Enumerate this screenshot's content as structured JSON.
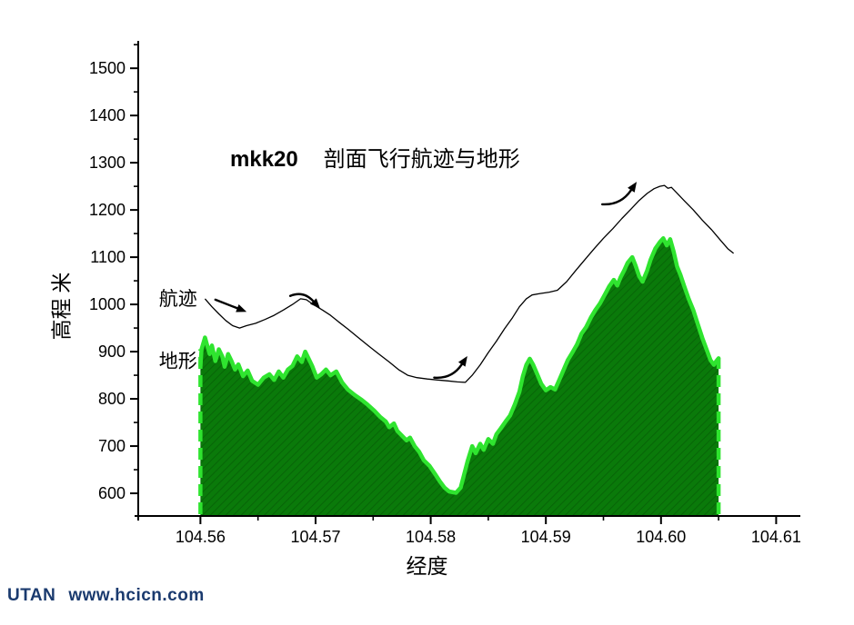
{
  "title": {
    "prefix": "mkk20",
    "text": "剖面飞行航迹与地形"
  },
  "footer": {
    "brand": "UTAN",
    "url": "www.hcicn.com"
  },
  "colors": {
    "terrain_fill": "#0a7a0a",
    "terrain_hatch": "#076607",
    "terrain_edge": "#2fe42f",
    "track_line": "#000000",
    "footer_text": "#1a3a6e"
  },
  "chart_data": {
    "type": "area",
    "title": "mkk20 剖面飞行航迹与地形",
    "xlabel": "经度",
    "ylabel": "高程 米",
    "xlim": [
      104.5546,
      104.6121
    ],
    "ylim": [
      552,
      1558
    ],
    "grid": false,
    "legend_position": "inline-labels",
    "x_ticks": [
      {
        "v": 104.56,
        "label": "104.56"
      },
      {
        "v": 104.57,
        "label": "104.57"
      },
      {
        "v": 104.58,
        "label": "104.58"
      },
      {
        "v": 104.59,
        "label": "104.59"
      },
      {
        "v": 104.6,
        "label": "104.60"
      },
      {
        "v": 104.61,
        "label": "104.61"
      }
    ],
    "x_minor_ticks": [
      104.565,
      104.575,
      104.585,
      104.595,
      104.605
    ],
    "y_ticks": [
      {
        "v": 600,
        "label": "600"
      },
      {
        "v": 700,
        "label": "700"
      },
      {
        "v": 800,
        "label": "800"
      },
      {
        "v": 900,
        "label": "900"
      },
      {
        "v": 1000,
        "label": "1000"
      },
      {
        "v": 1100,
        "label": "1100"
      },
      {
        "v": 1200,
        "label": "1200"
      },
      {
        "v": 1300,
        "label": "1300"
      },
      {
        "v": 1400,
        "label": "1400"
      },
      {
        "v": 1500,
        "label": "1500"
      }
    ],
    "y_minor_ticks": [
      650,
      750,
      850,
      950,
      1050,
      1150,
      1250,
      1350,
      1450,
      1550
    ],
    "series": [
      {
        "name": "地形",
        "kind": "area",
        "points": [
          [
            104.56,
            870
          ],
          [
            104.5601,
            905
          ],
          [
            104.5604,
            930
          ],
          [
            104.5606,
            912
          ],
          [
            104.5608,
            895
          ],
          [
            104.561,
            913
          ],
          [
            104.5613,
            880
          ],
          [
            104.5616,
            905
          ],
          [
            104.5619,
            890
          ],
          [
            104.5621,
            868
          ],
          [
            104.5624,
            895
          ],
          [
            104.5627,
            880
          ],
          [
            104.563,
            862
          ],
          [
            104.5633,
            873
          ],
          [
            104.5637,
            848
          ],
          [
            104.5641,
            860
          ],
          [
            104.5645,
            838
          ],
          [
            104.565,
            830
          ],
          [
            104.5655,
            845
          ],
          [
            104.566,
            852
          ],
          [
            104.5664,
            840
          ],
          [
            104.5668,
            858
          ],
          [
            104.5672,
            845
          ],
          [
            104.5676,
            862
          ],
          [
            104.568,
            870
          ],
          [
            104.5684,
            890
          ],
          [
            104.5688,
            878
          ],
          [
            104.5691,
            900
          ],
          [
            104.5694,
            885
          ],
          [
            104.5697,
            870
          ],
          [
            104.5701,
            845
          ],
          [
            104.5705,
            852
          ],
          [
            104.5709,
            862
          ],
          [
            104.5713,
            850
          ],
          [
            104.5718,
            858
          ],
          [
            104.5723,
            835
          ],
          [
            104.5728,
            820
          ],
          [
            104.5734,
            808
          ],
          [
            104.574,
            798
          ],
          [
            104.5745,
            788
          ],
          [
            104.5751,
            775
          ],
          [
            104.5756,
            762
          ],
          [
            104.5761,
            752
          ],
          [
            104.5764,
            740
          ],
          [
            104.5768,
            748
          ],
          [
            104.5771,
            732
          ],
          [
            104.5775,
            722
          ],
          [
            104.5779,
            712
          ],
          [
            104.5782,
            718
          ],
          [
            104.5786,
            700
          ],
          [
            104.579,
            688
          ],
          [
            104.5794,
            670
          ],
          [
            104.5799,
            658
          ],
          [
            104.5804,
            640
          ],
          [
            104.5808,
            625
          ],
          [
            104.5812,
            612
          ],
          [
            104.5816,
            604
          ],
          [
            104.5822,
            601
          ],
          [
            104.5826,
            612
          ],
          [
            104.5829,
            640
          ],
          [
            104.5832,
            668
          ],
          [
            104.5836,
            700
          ],
          [
            104.5839,
            685
          ],
          [
            104.5843,
            705
          ],
          [
            104.5846,
            692
          ],
          [
            104.585,
            715
          ],
          [
            104.5854,
            705
          ],
          [
            104.5857,
            725
          ],
          [
            104.5861,
            738
          ],
          [
            104.5865,
            752
          ],
          [
            104.5869,
            765
          ],
          [
            104.5873,
            788
          ],
          [
            104.5877,
            815
          ],
          [
            104.588,
            848
          ],
          [
            104.5883,
            872
          ],
          [
            104.5886,
            885
          ],
          [
            104.5889,
            872
          ],
          [
            104.5892,
            855
          ],
          [
            104.5896,
            832
          ],
          [
            104.59,
            818
          ],
          [
            104.5904,
            825
          ],
          [
            104.5908,
            820
          ],
          [
            104.5912,
            842
          ],
          [
            104.5916,
            865
          ],
          [
            104.5919,
            882
          ],
          [
            104.5923,
            898
          ],
          [
            104.5927,
            915
          ],
          [
            104.5931,
            938
          ],
          [
            104.5935,
            952
          ],
          [
            104.5939,
            972
          ],
          [
            104.5943,
            988
          ],
          [
            104.5947,
            1002
          ],
          [
            104.5951,
            1020
          ],
          [
            104.5955,
            1038
          ],
          [
            104.5959,
            1052
          ],
          [
            104.5962,
            1040
          ],
          [
            104.5965,
            1058
          ],
          [
            104.5968,
            1072
          ],
          [
            104.5971,
            1088
          ],
          [
            104.5975,
            1100
          ],
          [
            104.5978,
            1082
          ],
          [
            104.5981,
            1060
          ],
          [
            104.5984,
            1048
          ],
          [
            104.5988,
            1072
          ],
          [
            104.5991,
            1095
          ],
          [
            104.5995,
            1118
          ],
          [
            104.5999,
            1132
          ],
          [
            104.6002,
            1140
          ],
          [
            104.6005,
            1125
          ],
          [
            104.6008,
            1138
          ],
          [
            104.6011,
            1112
          ],
          [
            104.6014,
            1080
          ],
          [
            104.6017,
            1062
          ],
          [
            104.602,
            1040
          ],
          [
            104.6024,
            1012
          ],
          [
            104.6028,
            988
          ],
          [
            104.6032,
            958
          ],
          [
            104.6036,
            928
          ],
          [
            104.604,
            902
          ],
          [
            104.6043,
            882
          ],
          [
            104.6046,
            872
          ],
          [
            104.6048,
            880
          ],
          [
            104.605,
            886
          ]
        ]
      },
      {
        "name": "航迹",
        "kind": "line",
        "points": [
          [
            104.5604,
            1012
          ],
          [
            104.561,
            995
          ],
          [
            104.5616,
            980
          ],
          [
            104.5622,
            966
          ],
          [
            104.5628,
            955
          ],
          [
            104.5634,
            950
          ],
          [
            104.564,
            955
          ],
          [
            104.5648,
            960
          ],
          [
            104.5656,
            968
          ],
          [
            104.5664,
            977
          ],
          [
            104.5672,
            988
          ],
          [
            104.568,
            1000
          ],
          [
            104.5687,
            1012
          ],
          [
            104.5692,
            1010
          ],
          [
            104.5698,
            1000
          ],
          [
            104.5706,
            988
          ],
          [
            104.5713,
            977
          ],
          [
            104.572,
            963
          ],
          [
            104.5728,
            948
          ],
          [
            104.5737,
            930
          ],
          [
            104.5746,
            912
          ],
          [
            104.5755,
            895
          ],
          [
            104.5764,
            878
          ],
          [
            104.5772,
            862
          ],
          [
            104.578,
            850
          ],
          [
            104.5788,
            845
          ],
          [
            104.5797,
            842
          ],
          [
            104.5806,
            840
          ],
          [
            104.5815,
            838
          ],
          [
            104.5823,
            836
          ],
          [
            104.583,
            835
          ],
          [
            104.5836,
            850
          ],
          [
            104.5843,
            872
          ],
          [
            104.585,
            898
          ],
          [
            104.5857,
            922
          ],
          [
            104.5864,
            948
          ],
          [
            104.5871,
            972
          ],
          [
            104.5877,
            995
          ],
          [
            104.5883,
            1012
          ],
          [
            104.5888,
            1020
          ],
          [
            104.5895,
            1023
          ],
          [
            104.5903,
            1026
          ],
          [
            104.591,
            1030
          ],
          [
            104.5918,
            1048
          ],
          [
            104.5926,
            1072
          ],
          [
            104.5934,
            1095
          ],
          [
            104.5942,
            1118
          ],
          [
            104.595,
            1140
          ],
          [
            104.5958,
            1160
          ],
          [
            104.5966,
            1182
          ],
          [
            104.5974,
            1202
          ],
          [
            104.5981,
            1220
          ],
          [
            104.5988,
            1235
          ],
          [
            104.5994,
            1245
          ],
          [
            104.5999,
            1250
          ],
          [
            104.6003,
            1252
          ],
          [
            104.6006,
            1246
          ],
          [
            104.6009,
            1248
          ],
          [
            104.6013,
            1238
          ],
          [
            104.602,
            1220
          ],
          [
            104.6028,
            1200
          ],
          [
            104.6036,
            1178
          ],
          [
            104.6044,
            1158
          ],
          [
            104.6052,
            1135
          ],
          [
            104.6058,
            1118
          ],
          [
            104.6063,
            1108
          ]
        ]
      }
    ],
    "annotations": {
      "labels": [
        {
          "text": "航迹",
          "x": 104.5564,
          "y": 1012
        },
        {
          "text": "地形",
          "x": 104.5564,
          "y": 880
        }
      ],
      "arrows": [
        {
          "x1": 104.5613,
          "y1": 1010,
          "x2": 104.5632,
          "y2": 992,
          "bend": 0
        },
        {
          "x1": 104.5678,
          "y1": 1018,
          "x2": 104.5698,
          "y2": 1007,
          "bend": 9
        },
        {
          "x1": 104.5803,
          "y1": 845,
          "x2": 104.5827,
          "y2": 873,
          "bend": -10
        },
        {
          "x1": 104.5949,
          "y1": 1212,
          "x2": 104.5974,
          "y2": 1242,
          "bend": -10
        }
      ]
    }
  }
}
